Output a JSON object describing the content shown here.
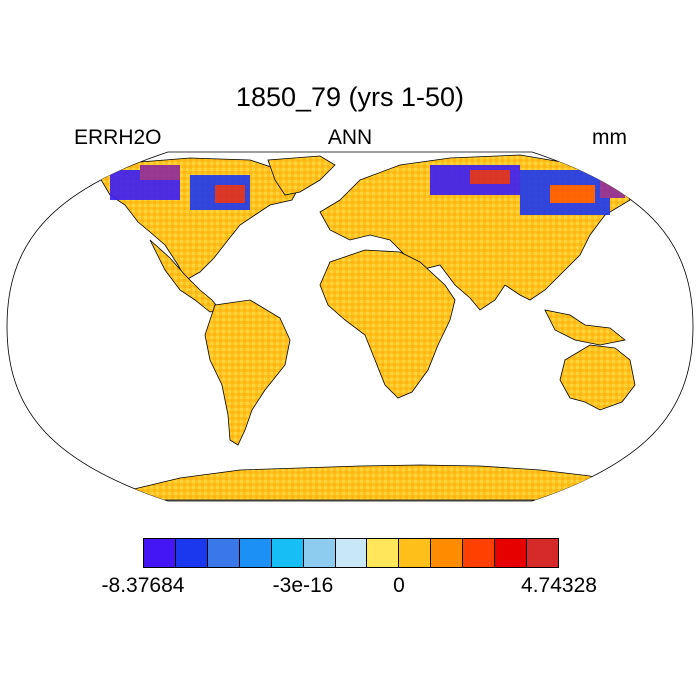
{
  "header": {
    "title": "1850_79 (yrs 1-50)",
    "left_label": "ERRH2O",
    "center_label": "ANN",
    "right_label": "mm"
  },
  "map": {
    "projection": "Robinson",
    "ocean_color": "#ffffff",
    "land_dominant_color": "#FFC21E",
    "land_secondary_color": "#FFE25A",
    "high_latitude_mix": [
      "#3A1CF5",
      "#1C38F0",
      "#D62828",
      "#FF5A00",
      "#8E2A9E"
    ]
  },
  "colorbar": {
    "colors": [
      "#4415F5",
      "#1C38EE",
      "#3A78EA",
      "#1C90F5",
      "#17BEF5",
      "#8ECCEF",
      "#C8E8F8",
      "#FFE65A",
      "#FFBF1A",
      "#FF8C00",
      "#FF4000",
      "#E60000",
      "#D62A2A"
    ],
    "tick_labels": [
      "-8.37684",
      "-3e-16",
      "0",
      "4.74328"
    ]
  }
}
